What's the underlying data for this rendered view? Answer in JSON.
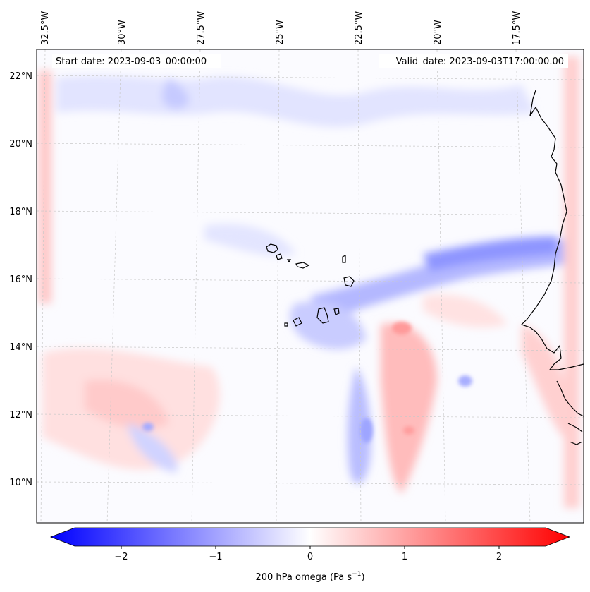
{
  "header": {
    "start_date": "Start date: 2023-09-03_00:00:00",
    "valid_date": "Valid_date: 2023-09-03T17:00:00.00"
  },
  "map": {
    "lon_labels": [
      "32.5°W",
      "30°W",
      "27.5°W",
      "25°W",
      "22.5°W",
      "20°W",
      "17.5°W"
    ],
    "lat_labels": [
      "22°N",
      "20°N",
      "18°N",
      "16°N",
      "14°N",
      "12°N",
      "10°N"
    ],
    "grid": true
  },
  "colorbar": {
    "ticks": [
      "−2",
      "−1",
      "0",
      "1",
      "2"
    ],
    "label_main": "200 hPa omega (Pa s",
    "label_sup": "−1",
    "label_close": ")",
    "min": -2.5,
    "max": 2.5,
    "cmap": "bwr",
    "color_neg": "#0000ff",
    "color_mid": "#ffffff",
    "color_pos": "#ff0000"
  }
}
